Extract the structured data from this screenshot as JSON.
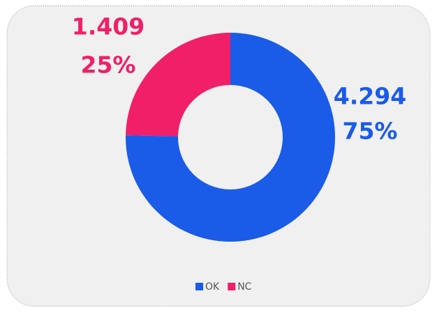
{
  "chart_data": {
    "type": "donut",
    "categories": [
      "OK",
      "NC"
    ],
    "values": [
      4294,
      1409
    ],
    "value_labels": [
      "4.294",
      "1.409"
    ],
    "percent_labels": [
      "75%",
      "25%"
    ],
    "colors": [
      "#1a5be8",
      "#f01f68"
    ],
    "legend": "bottom"
  }
}
